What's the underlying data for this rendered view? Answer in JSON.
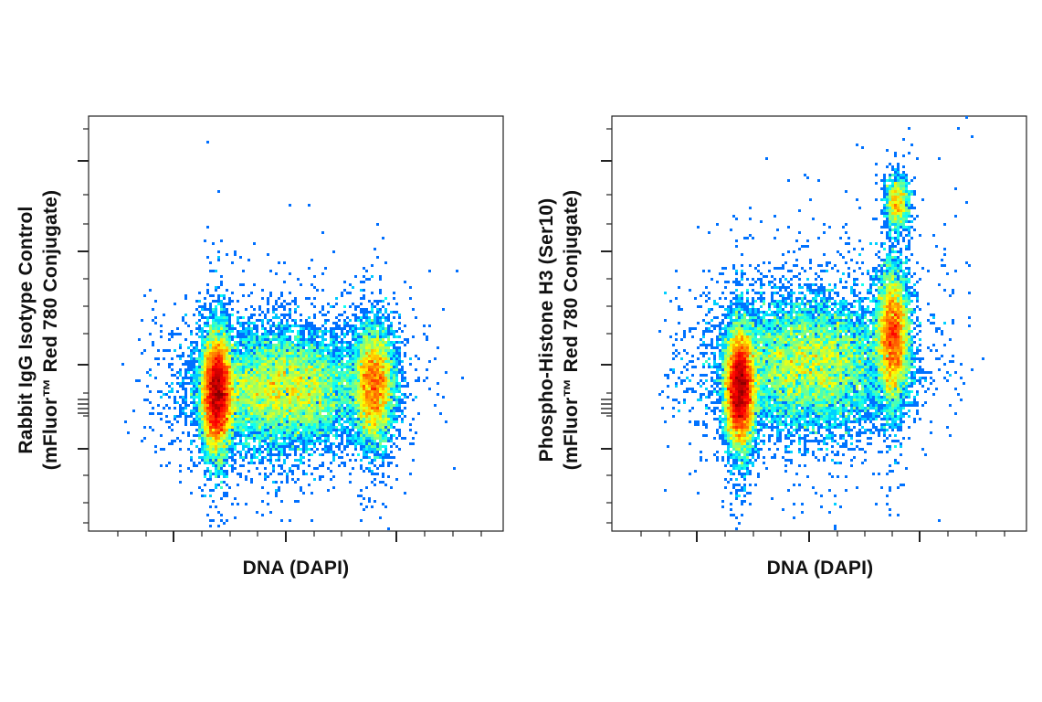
{
  "chart_data": [
    {
      "type": "scatter",
      "render": "density-pseudocolor",
      "title": "",
      "xlabel": "DNA (DAPI)",
      "ylabel_lines": [
        "Rabbit IgG Isotype Control",
        "(mFluor™ Red 780 Conjugate)"
      ],
      "xlim": [
        0,
        1
      ],
      "ylim": [
        0,
        1
      ],
      "x_tick_labels": [],
      "y_tick_labels": [],
      "grid": false,
      "populations": [
        {
          "name": "",
          "x": 0.31,
          "y": 0.33,
          "sx": 0.018,
          "sy": 0.07,
          "weight": 0.38
        },
        {
          "name": "",
          "x": 0.47,
          "y": 0.34,
          "sx": 0.1,
          "sy": 0.07,
          "weight": 0.4
        },
        {
          "name": "",
          "x": 0.69,
          "y": 0.35,
          "sx": 0.025,
          "sy": 0.07,
          "weight": 0.22
        }
      ]
    },
    {
      "type": "scatter",
      "render": "density-pseudocolor",
      "title": "",
      "xlabel": "DNA (DAPI)",
      "ylabel_lines": [
        "Phospho-Histone H3 (Ser10)",
        "(mFluor™ Red 780 Conjugate)"
      ],
      "xlim": [
        0,
        1
      ],
      "ylim": [
        0,
        1
      ],
      "x_tick_labels": [],
      "y_tick_labels": [],
      "grid": false,
      "populations": [
        {
          "name": "",
          "x": 0.31,
          "y": 0.34,
          "sx": 0.018,
          "sy": 0.07,
          "weight": 0.36
        },
        {
          "name": "",
          "x": 0.48,
          "y": 0.4,
          "sx": 0.1,
          "sy": 0.08,
          "weight": 0.38
        },
        {
          "name": "",
          "x": 0.68,
          "y": 0.47,
          "sx": 0.02,
          "sy": 0.08,
          "weight": 0.22
        },
        {
          "name": "",
          "x": 0.69,
          "y": 0.79,
          "sx": 0.015,
          "sy": 0.035,
          "weight": 0.04
        }
      ]
    }
  ]
}
